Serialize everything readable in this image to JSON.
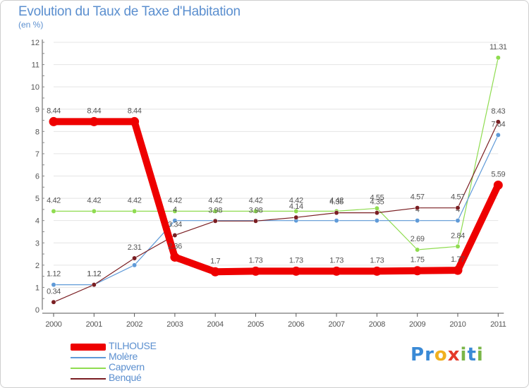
{
  "title": "Evolution du Taux de Taxe d'Habitation",
  "subtitle": "(en %)",
  "logo": {
    "letters": [
      "P",
      "r",
      "o",
      "x",
      "i",
      "t",
      "i"
    ],
    "colors": [
      "#3a8ad6",
      "#3a8ad6",
      "#f0b020",
      "#e53a2a",
      "#7ab648",
      "#3a8ad6",
      "#7ab648"
    ]
  },
  "chart_data": {
    "type": "line",
    "categories": [
      "2000",
      "2001",
      "2002",
      "2003",
      "2004",
      "2005",
      "2006",
      "2007",
      "2008",
      "2009",
      "2010",
      "2011"
    ],
    "ylim": [
      0,
      12
    ],
    "yticks": [
      "0",
      "1",
      "2",
      "3",
      "4",
      "5",
      "6",
      "7",
      "8",
      "9",
      "10",
      "11",
      "12"
    ],
    "xlabel": "",
    "ylabel": "",
    "series": [
      {
        "name": "Capvern",
        "color": "#8fdc50",
        "values": [
          4.42,
          4.42,
          4.42,
          4.42,
          4.42,
          4.42,
          4.42,
          4.42,
          4.55,
          2.69,
          2.84,
          11.31
        ],
        "labels": [
          "4.42",
          "4.42",
          "4.42",
          "4.42",
          "4.42",
          "4.42",
          "4.42",
          "4.42",
          "4.55",
          "2.69",
          "2.84",
          "11.31"
        ]
      },
      {
        "name": "Molère",
        "color": "#5f9ad8",
        "values": [
          1.12,
          1.12,
          2.0,
          4.0,
          4.0,
          4.0,
          4.0,
          4.0,
          4.0,
          4.0,
          4.0,
          7.84
        ],
        "labels": [
          "1.12",
          "1.12",
          "",
          "4",
          "",
          "",
          "",
          "",
          "",
          "4",
          "4",
          "7.84"
        ]
      },
      {
        "name": "Benqué",
        "color": "#7a1e22",
        "values": [
          0.34,
          1.12,
          2.31,
          3.34,
          3.98,
          3.98,
          4.14,
          4.35,
          4.35,
          4.57,
          4.57,
          8.43
        ],
        "labels": [
          "0.34",
          "1.12",
          "2.31",
          "3.34",
          "3.98",
          "3.98",
          "4.14",
          "4.35",
          "4.35",
          "4.57",
          "4.57",
          "8.43"
        ]
      },
      {
        "name": "TILHOUSE",
        "color": "#ee0000",
        "values": [
          8.44,
          8.44,
          8.44,
          2.36,
          1.7,
          1.73,
          1.73,
          1.73,
          1.73,
          1.75,
          1.77,
          5.59
        ],
        "labels": [
          "8.44",
          "8.44",
          "8.44",
          "2.36",
          "1.7",
          "1.73",
          "1.73",
          "1.73",
          "1.73",
          "1.75",
          "1.77",
          "5.59"
        ]
      }
    ],
    "legend": [
      {
        "name": "TILHOUSE",
        "color": "#ee0000",
        "weight": "thick"
      },
      {
        "name": "Molère",
        "color": "#5f9ad8",
        "weight": "thin"
      },
      {
        "name": "Capvern",
        "color": "#8fdc50",
        "weight": "thin"
      },
      {
        "name": "Benqué",
        "color": "#7a1e22",
        "weight": "thin"
      }
    ]
  }
}
